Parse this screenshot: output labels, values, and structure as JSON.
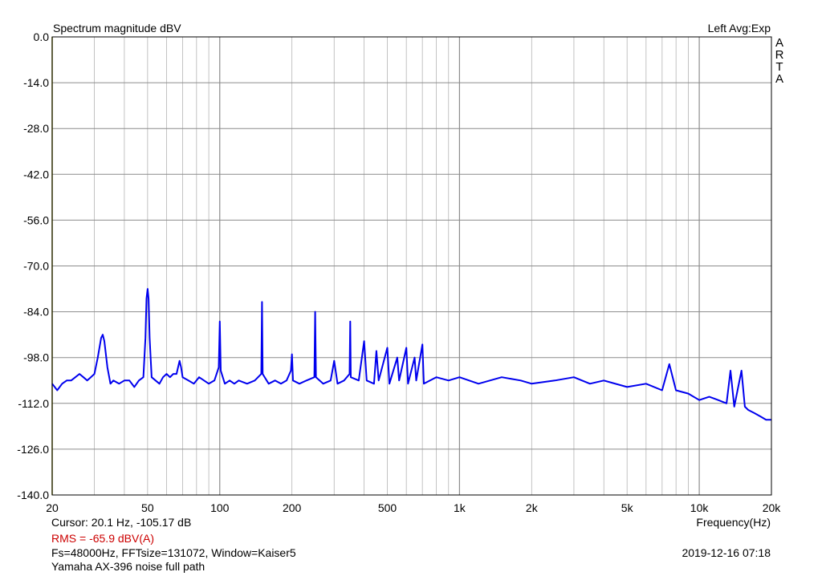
{
  "header": {
    "title": "Spectrum magnitude dBV",
    "channel": "Left  Avg:Exp",
    "brand_letters": [
      "A",
      "R",
      "T",
      "A"
    ]
  },
  "footer": {
    "cursor": "Cursor:   20.1 Hz, -105.17 dB",
    "rms": "RMS =  -65.9 dBV(A)",
    "params": "Fs=48000Hz, FFTsize=131072, Window=Kaiser5",
    "description": "Yamaha AX-396 noise full path",
    "timestamp": "2019-12-16  07:18",
    "xlabel": "Frequency(Hz)"
  },
  "colors": {
    "trace": "#0000ee",
    "grid": "#b4b4b4",
    "rms": "#cc0000"
  },
  "chart_data": {
    "type": "line",
    "x_scale": "log",
    "xlim": [
      20,
      20000
    ],
    "ylim": [
      -140,
      0
    ],
    "ylabel": "",
    "xlabel": "Frequency(Hz)",
    "grid": true,
    "y_ticks": [
      {
        "value": 0,
        "label": "0.0"
      },
      {
        "value": -14,
        "label": "-14.0"
      },
      {
        "value": -28,
        "label": "-28.0"
      },
      {
        "value": -42,
        "label": "-42.0"
      },
      {
        "value": -56,
        "label": "-56.0"
      },
      {
        "value": -70,
        "label": "-70.0"
      },
      {
        "value": -84,
        "label": "-84.0"
      },
      {
        "value": -98,
        "label": "-98.0"
      },
      {
        "value": -112,
        "label": "-112.0"
      },
      {
        "value": -126,
        "label": "-126.0"
      },
      {
        "value": -140,
        "label": "-140.0"
      }
    ],
    "x_ticks": [
      {
        "value": 20,
        "label": "20"
      },
      {
        "value": 50,
        "label": "50"
      },
      {
        "value": 100,
        "label": "100"
      },
      {
        "value": 200,
        "label": "200"
      },
      {
        "value": 500,
        "label": "500"
      },
      {
        "value": 1000,
        "label": "1k"
      },
      {
        "value": 2000,
        "label": "2k"
      },
      {
        "value": 5000,
        "label": "5k"
      },
      {
        "value": 10000,
        "label": "10k"
      },
      {
        "value": 20000,
        "label": "20k"
      }
    ],
    "series": [
      {
        "points": [
          [
            20,
            -106
          ],
          [
            21,
            -108
          ],
          [
            22,
            -106
          ],
          [
            23,
            -105
          ],
          [
            24,
            -105
          ],
          [
            25,
            -104
          ],
          [
            26,
            -103
          ],
          [
            27,
            -104
          ],
          [
            28,
            -105
          ],
          [
            29,
            -104
          ],
          [
            30,
            -103
          ],
          [
            31,
            -98
          ],
          [
            32,
            -92
          ],
          [
            32.5,
            -91
          ],
          [
            33,
            -93
          ],
          [
            34,
            -101
          ],
          [
            35,
            -106
          ],
          [
            36,
            -105
          ],
          [
            38,
            -106
          ],
          [
            40,
            -105
          ],
          [
            42,
            -105
          ],
          [
            44,
            -107
          ],
          [
            46,
            -105
          ],
          [
            48,
            -104
          ],
          [
            49,
            -92
          ],
          [
            49.5,
            -80
          ],
          [
            50,
            -77
          ],
          [
            50.5,
            -80
          ],
          [
            51,
            -92
          ],
          [
            52,
            -104
          ],
          [
            54,
            -105
          ],
          [
            56,
            -106
          ],
          [
            58,
            -104
          ],
          [
            60,
            -103
          ],
          [
            62,
            -104
          ],
          [
            64,
            -103
          ],
          [
            66,
            -103
          ],
          [
            68,
            -99
          ],
          [
            69,
            -101
          ],
          [
            70,
            -104
          ],
          [
            74,
            -105
          ],
          [
            78,
            -106
          ],
          [
            82,
            -104
          ],
          [
            86,
            -105
          ],
          [
            90,
            -106
          ],
          [
            95,
            -105
          ],
          [
            99,
            -101
          ],
          [
            100,
            -87
          ],
          [
            101,
            -102
          ],
          [
            105,
            -106
          ],
          [
            110,
            -105
          ],
          [
            115,
            -106
          ],
          [
            120,
            -105
          ],
          [
            130,
            -106
          ],
          [
            140,
            -105
          ],
          [
            149,
            -103
          ],
          [
            150,
            -81
          ],
          [
            151,
            -103
          ],
          [
            160,
            -106
          ],
          [
            170,
            -105
          ],
          [
            180,
            -106
          ],
          [
            190,
            -105
          ],
          [
            198,
            -102
          ],
          [
            200,
            -97
          ],
          [
            202,
            -105
          ],
          [
            215,
            -106
          ],
          [
            230,
            -105
          ],
          [
            248,
            -104
          ],
          [
            250,
            -84
          ],
          [
            252,
            -104
          ],
          [
            270,
            -106
          ],
          [
            290,
            -105
          ],
          [
            300,
            -99
          ],
          [
            310,
            -106
          ],
          [
            330,
            -105
          ],
          [
            348,
            -103
          ],
          [
            350,
            -87
          ],
          [
            352,
            -104
          ],
          [
            380,
            -105
          ],
          [
            400,
            -93
          ],
          [
            410,
            -105
          ],
          [
            440,
            -106
          ],
          [
            450,
            -96
          ],
          [
            460,
            -105
          ],
          [
            500,
            -95
          ],
          [
            510,
            -106
          ],
          [
            550,
            -98
          ],
          [
            560,
            -105
          ],
          [
            600,
            -95
          ],
          [
            610,
            -106
          ],
          [
            650,
            -98
          ],
          [
            660,
            -105
          ],
          [
            700,
            -94
          ],
          [
            710,
            -106
          ],
          [
            800,
            -104
          ],
          [
            900,
            -105
          ],
          [
            1000,
            -104
          ],
          [
            1200,
            -106
          ],
          [
            1500,
            -104
          ],
          [
            1800,
            -105
          ],
          [
            2000,
            -106
          ],
          [
            2500,
            -105
          ],
          [
            3000,
            -104
          ],
          [
            3500,
            -106
          ],
          [
            4000,
            -105
          ],
          [
            5000,
            -107
          ],
          [
            6000,
            -106
          ],
          [
            7000,
            -108
          ],
          [
            7500,
            -100
          ],
          [
            8000,
            -108
          ],
          [
            9000,
            -109
          ],
          [
            10000,
            -111
          ],
          [
            11000,
            -110
          ],
          [
            12000,
            -111
          ],
          [
            13000,
            -112
          ],
          [
            13500,
            -102
          ],
          [
            14000,
            -113
          ],
          [
            15000,
            -102
          ],
          [
            15500,
            -113
          ],
          [
            16000,
            -114
          ],
          [
            17000,
            -115
          ],
          [
            18000,
            -116
          ],
          [
            19000,
            -117
          ],
          [
            20000,
            -117
          ]
        ]
      }
    ]
  }
}
